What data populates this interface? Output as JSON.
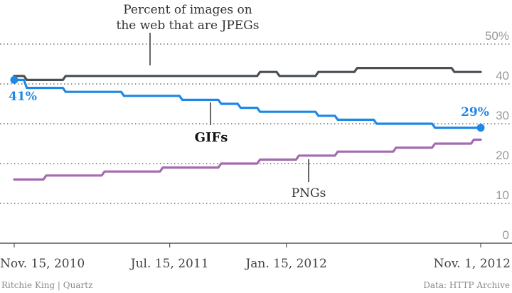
{
  "chart_data": {
    "type": "line",
    "x": [
      "Nov. 15, 2010",
      "Dec. 2010",
      "Jan. 2011",
      "Feb. 2011",
      "Mar. 2011",
      "Apr. 2011",
      "May 2011",
      "Jun. 2011",
      "Jul. 15, 2011",
      "Aug. 2011",
      "Sep. 2011",
      "Oct. 2011",
      "Nov. 2011",
      "Dec. 2011",
      "Jan. 15, 2012",
      "Feb. 2012",
      "Mar. 2012",
      "Apr. 2012",
      "May 2012",
      "Jun. 2012",
      "Jul. 2012",
      "Aug. 2012",
      "Sep. 2012",
      "Oct. 2012",
      "Nov. 1, 2012"
    ],
    "series": [
      {
        "name": "Percent of images on the web that are JPEGs",
        "color": "#4a4f54",
        "values": [
          42,
          41,
          41,
          42,
          42,
          42,
          42,
          42,
          42,
          42,
          42,
          42,
          42,
          43,
          42,
          42,
          43,
          43,
          44,
          44,
          44,
          44,
          44,
          43,
          43
        ]
      },
      {
        "name": "GIFs",
        "color": "#1e88e5",
        "values": [
          41,
          39,
          39,
          38,
          38,
          38,
          37,
          37,
          37,
          36,
          36,
          35,
          34,
          33,
          33,
          33,
          32,
          31,
          31,
          30,
          30,
          30,
          29,
          29,
          29
        ]
      },
      {
        "name": "PNGs",
        "color": "#a46bb0",
        "values": [
          16,
          16,
          17,
          17,
          17,
          18,
          18,
          18,
          19,
          19,
          19,
          20,
          20,
          21,
          21,
          22,
          22,
          23,
          23,
          23,
          24,
          24,
          25,
          25,
          26
        ]
      }
    ],
    "x_ticks": [
      "Nov. 15, 2010",
      "Jul. 15, 2011",
      "Jan. 15, 2012",
      "Nov. 1, 2012"
    ],
    "y_ticks": [
      "50%",
      "40",
      "30",
      "20",
      "10",
      "0"
    ],
    "ylim": [
      0,
      50
    ],
    "grid": true,
    "annotations": {
      "jpeg_line1": "Percent of images on",
      "jpeg_line2": "the web that are JPEGs",
      "gif": "GIFs",
      "png": "PNGs",
      "gif_start": "41%",
      "gif_end": "29%"
    }
  },
  "footer": {
    "credit": "Ritchie King | Quartz",
    "source": "Data: HTTP Archive"
  }
}
